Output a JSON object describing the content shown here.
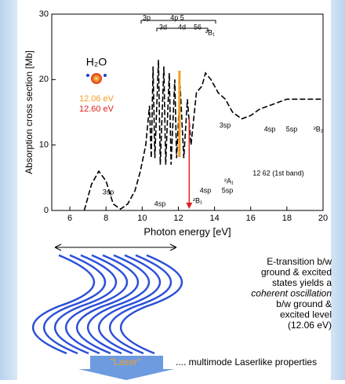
{
  "chart_data": {
    "type": "line",
    "xlabel": "Photon energy [eV]",
    "ylabel": "Absorption cross section [Mb]",
    "xlim": [
      5,
      20
    ],
    "xticks": [
      6,
      8,
      10,
      12,
      14,
      16,
      18,
      20
    ],
    "ylim": [
      0,
      30
    ],
    "yticks": [
      0,
      10,
      20,
      30
    ],
    "x": [
      6.8,
      7.2,
      7.6,
      8.0,
      8.4,
      8.8,
      9.2,
      9.6,
      9.9,
      10.2,
      10.4,
      10.5,
      10.6,
      10.7,
      10.9,
      11.0,
      11.2,
      11.3,
      11.5,
      11.6,
      11.8,
      11.9,
      12.1,
      12.3,
      12.5,
      12.7,
      13.0,
      13.3,
      13.5,
      13.8,
      14.2,
      14.6,
      15.0,
      15.5,
      16.0,
      16.5,
      17.0,
      17.5,
      18.0,
      19.0,
      20.0
    ],
    "values": [
      0,
      4,
      6,
      4.5,
      1,
      0.2,
      1,
      3,
      6,
      10,
      16,
      8,
      22,
      8,
      23,
      7,
      22,
      7,
      21,
      7,
      20,
      8,
      19,
      8,
      17,
      10,
      18,
      19,
      21,
      20,
      18,
      17,
      15,
      14,
      14.5,
      15.5,
      16,
      16.5,
      17,
      17,
      17
    ],
    "color": "#000000",
    "molecule": "H₂O",
    "markers": [
      {
        "label": "12.06 eV",
        "value": 12.06,
        "color": "#f0a020"
      },
      {
        "label": "12.60 eV",
        "value": 12.6,
        "color": "#e02020"
      }
    ],
    "annotations": [
      "3p",
      "4p 5",
      "3d",
      "4d",
      "56",
      "²B₁",
      "3sp",
      "4sp",
      "5sp",
      "²B₂",
      "²A₁",
      "12 62 (1st band)",
      "3sp",
      "4sp",
      "5sp",
      "²B₁",
      "4sp"
    ]
  },
  "diagram": {
    "text_lines": [
      "E-transition b/w",
      "ground & excited",
      "states yields a",
      "coherent oscillation",
      "b/w ground &",
      "excited level",
      "(12.06 eV)"
    ],
    "laser": "\"Laser\"",
    "caption": ".... multimode Laserlike properties"
  }
}
